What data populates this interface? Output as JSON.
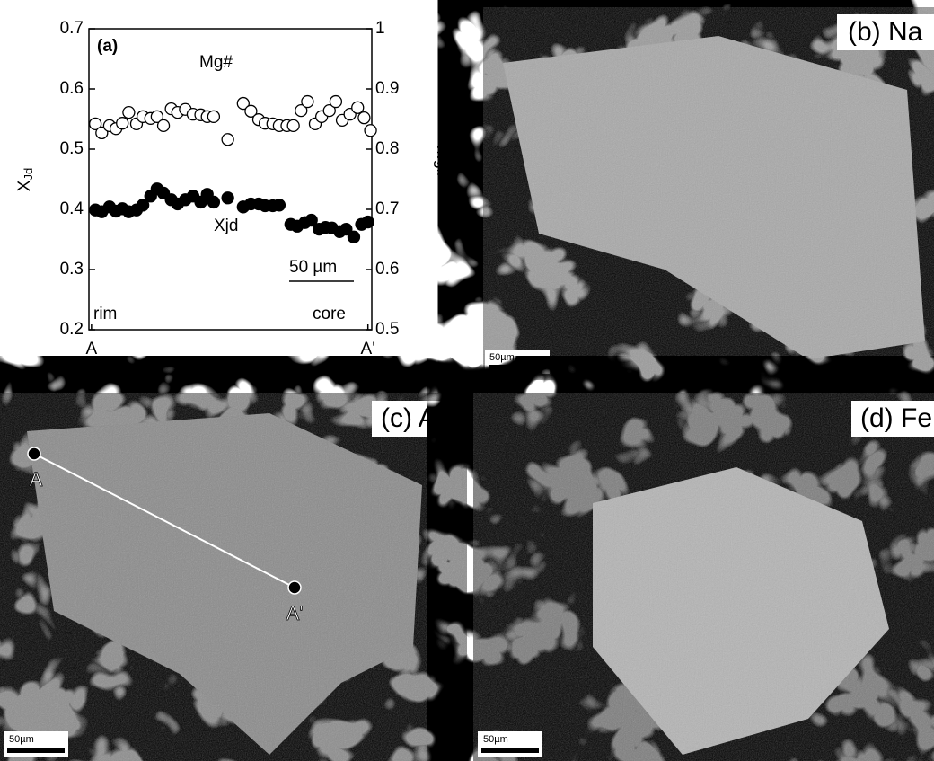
{
  "chart_data": {
    "type": "scatter",
    "panel_label": "(a)",
    "ylabel": {
      "main": "X",
      "sub": "Jd"
    },
    "y2label": "Mg#",
    "xlim": [
      -2,
      218
    ],
    "xticks": [
      {
        "value": 0,
        "label": "A"
      },
      {
        "value": 215,
        "label": "A'"
      }
    ],
    "ylim": [
      0.2,
      0.7
    ],
    "yticks": [
      0.2,
      0.3,
      0.4,
      0.5,
      0.6,
      0.7
    ],
    "y2lim": [
      0.5,
      1
    ],
    "y2ticks": [
      0.5,
      0.6,
      0.7,
      0.8,
      0.9,
      1
    ],
    "annotations": [
      "Mg#",
      "Xjd",
      "50 µm",
      "rim",
      "core"
    ],
    "series": [
      {
        "name": "Mg#",
        "axis": "y2",
        "marker": "open",
        "color": "#000000",
        "x": [
          3,
          8,
          14,
          19,
          24,
          29,
          35,
          40,
          46,
          51,
          56,
          62,
          67,
          73,
          79,
          85,
          90,
          95,
          106,
          118,
          124,
          130,
          135,
          141,
          146,
          152,
          157,
          163,
          168,
          174,
          179,
          185,
          190,
          195,
          201,
          207,
          212,
          217
        ],
        "values": [
          0.842,
          0.827,
          0.839,
          0.834,
          0.843,
          0.861,
          0.842,
          0.854,
          0.851,
          0.854,
          0.839,
          0.867,
          0.861,
          0.866,
          0.858,
          0.857,
          0.854,
          0.854,
          0.816,
          0.876,
          0.863,
          0.849,
          0.843,
          0.842,
          0.839,
          0.839,
          0.839,
          0.864,
          0.879,
          0.842,
          0.854,
          0.864,
          0.879,
          0.848,
          0.858,
          0.869,
          0.852,
          0.831
        ]
      },
      {
        "name": "Xjd",
        "axis": "y",
        "marker": "filled",
        "color": "#000000",
        "x": [
          3,
          8,
          14,
          19,
          24,
          29,
          35,
          40,
          46,
          51,
          56,
          62,
          67,
          73,
          79,
          85,
          90,
          95,
          106,
          118,
          124,
          130,
          135,
          141,
          146,
          155,
          160,
          166,
          171,
          177,
          182,
          187,
          193,
          198,
          204,
          210,
          215
        ],
        "values": [
          0.399,
          0.396,
          0.404,
          0.397,
          0.401,
          0.396,
          0.399,
          0.407,
          0.422,
          0.434,
          0.427,
          0.416,
          0.409,
          0.416,
          0.422,
          0.412,
          0.425,
          0.412,
          0.419,
          0.404,
          0.409,
          0.409,
          0.406,
          0.406,
          0.407,
          0.375,
          0.372,
          0.378,
          0.382,
          0.367,
          0.37,
          0.369,
          0.363,
          0.367,
          0.354,
          0.375,
          0.379
        ]
      }
    ]
  },
  "panels": [
    {
      "label": "(b) Na",
      "scale_bar": "50µm"
    },
    {
      "label": "(c) Al",
      "scale_bar": "50µm",
      "profile": {
        "start": "A",
        "end": "A'"
      }
    },
    {
      "label": "(d) Fe",
      "scale_bar": "50µm"
    }
  ]
}
